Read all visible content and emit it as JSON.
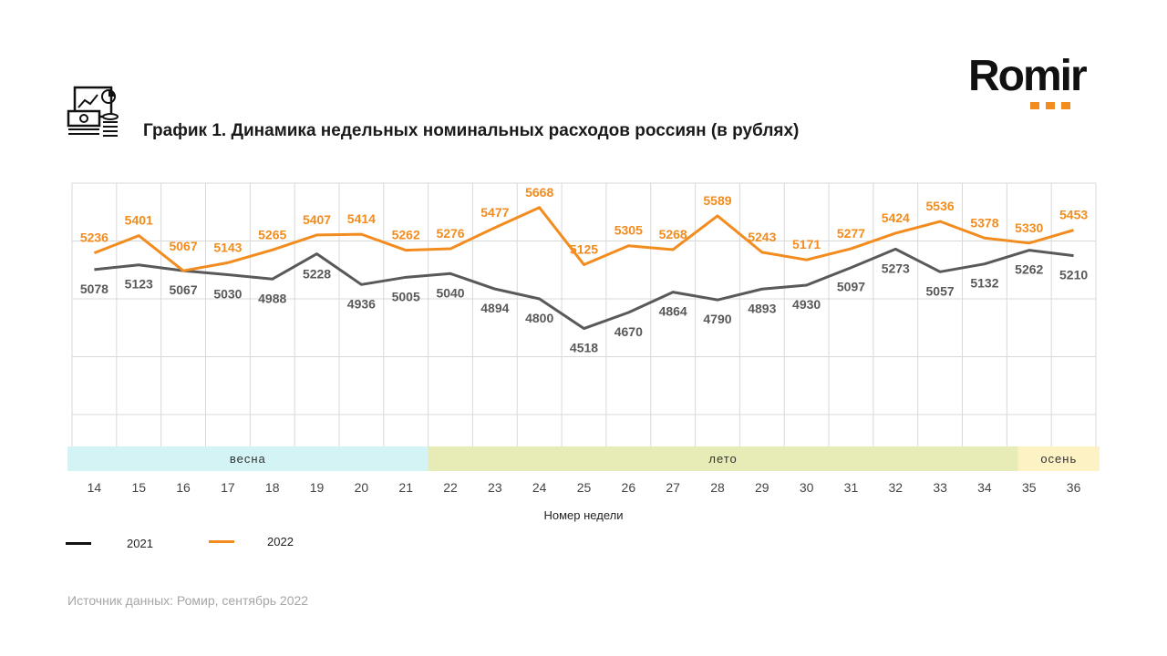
{
  "title": "График 1. Динамика недельных номинальных расходов россиян (в рублях)",
  "brand": "Romir",
  "source": "Источник данных: Ромир, сентябрь 2022",
  "icon": "finance-report-icon",
  "colors": {
    "s2021": "#595959",
    "s2022": "#f28c1e",
    "spring": "#d3f3f5",
    "summer": "#e7ecb6",
    "autumn": "#fdf2c4"
  },
  "chart_data": {
    "type": "line",
    "xlabel": "Номер недели",
    "ylabel": "",
    "categories": [
      "14",
      "15",
      "16",
      "17",
      "18",
      "19",
      "20",
      "21",
      "22",
      "23",
      "24",
      "25",
      "26",
      "27",
      "28",
      "29",
      "30",
      "31",
      "32",
      "33",
      "34",
      "35",
      "36"
    ],
    "ylim": [
      3700,
      5900
    ],
    "grid": true,
    "legend": "bottom-left",
    "seasons": [
      {
        "label": "весна",
        "from": "14",
        "to": "21"
      },
      {
        "label": "лето",
        "from": "22",
        "to": "35"
      },
      {
        "label": "осень",
        "from": "35",
        "to": "36"
      }
    ],
    "series": [
      {
        "name": "2021",
        "values": [
          5078,
          5123,
          5067,
          5030,
          4988,
          5228,
          4936,
          5005,
          5040,
          4894,
          4800,
          4518,
          4670,
          4864,
          4790,
          4893,
          4930,
          5097,
          5273,
          5057,
          5132,
          5262,
          5210
        ]
      },
      {
        "name": "2022",
        "values": [
          5236,
          5401,
          5067,
          5143,
          5265,
          5407,
          5414,
          5262,
          5276,
          5477,
          5668,
          5125,
          5305,
          5268,
          5589,
          5243,
          5171,
          5277,
          5424,
          5536,
          5378,
          5330,
          5453
        ]
      }
    ]
  }
}
